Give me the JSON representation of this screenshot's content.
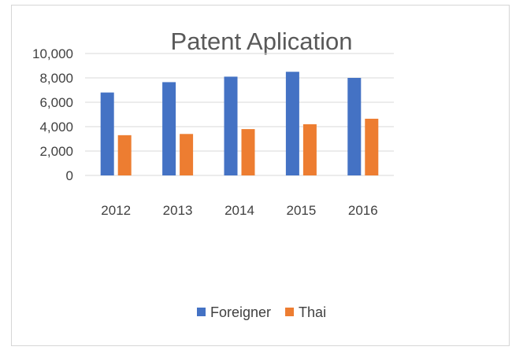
{
  "chart_data": {
    "type": "bar",
    "title": "Patent Aplication",
    "xlabel": "",
    "ylabel": "",
    "categories": [
      "2012",
      "2013",
      "2014",
      "2015",
      "2016"
    ],
    "series": [
      {
        "name": "Foreigner",
        "color": "#4472C4",
        "values": [
          6800,
          7650,
          8100,
          8500,
          8000
        ]
      },
      {
        "name": "Thai",
        "color": "#ED7D31",
        "values": [
          3300,
          3400,
          3800,
          4200,
          4650
        ]
      }
    ],
    "ylim": [
      0,
      10000
    ],
    "yticks": [
      "0",
      "2,000",
      "4,000",
      "6,000",
      "8,000",
      "10,000"
    ],
    "grid": true,
    "legend_position": "bottom"
  }
}
